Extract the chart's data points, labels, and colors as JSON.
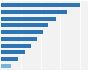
{
  "values": [
    100,
    84,
    69,
    60,
    53,
    46,
    38,
    30,
    22,
    13
  ],
  "bar_colors": [
    "#2e75b6",
    "#2e75b6",
    "#2e75b6",
    "#2e75b6",
    "#2e75b6",
    "#2e75b6",
    "#2e75b6",
    "#2e75b6",
    "#2e75b6",
    "#7ab3d9"
  ],
  "background_color": "#ffffff",
  "plot_bg_color": "#f2f2f2",
  "xlim": [
    0,
    110
  ],
  "figsize": [
    1.0,
    0.71
  ],
  "dpi": 100
}
